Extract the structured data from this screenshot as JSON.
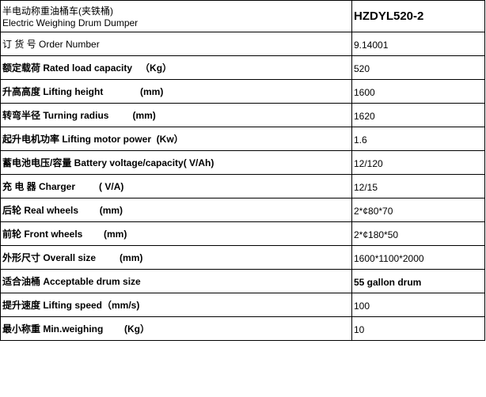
{
  "header": {
    "label_cn": "半电动称重油桶车(夹铁桶)",
    "label_en": "Electric Weighing Drum Dumper",
    "value": "HZDYL520-2"
  },
  "rows": [
    {
      "label": "订 货 号 Order Number",
      "value": "9.14001",
      "label_bold": false,
      "value_bold": false
    },
    {
      "label": "额定载荷 Rated load capacity   （Kg）",
      "value": "520",
      "label_bold": true,
      "value_bold": false
    },
    {
      "label": "升高高度 Lifting height              (mm)",
      "value": "1600",
      "label_bold": true,
      "value_bold": false
    },
    {
      "label": "转弯半径 Turning radius         (mm)",
      "value": "1620",
      "label_bold": true,
      "value_bold": false
    },
    {
      "label": "起升电机功率 Lifting motor power  (Kw）",
      "value": "1.6",
      "label_bold": true,
      "value_bold": false
    },
    {
      "label": "蓄电池电压/容量 Battery voltage/capacity( V/Ah)",
      "value": "12/120",
      "label_bold": true,
      "value_bold": false
    },
    {
      "label": "充 电 器 Charger         ( V/A)",
      "value": "12/15",
      "label_bold": true,
      "value_bold": false
    },
    {
      "label": "后轮 Real wheels        (mm)",
      "value": "2*¢80*70",
      "label_bold": true,
      "value_bold": false
    },
    {
      "label": "前轮 Front wheels        (mm)",
      "value": "2*¢180*50",
      "label_bold": true,
      "value_bold": false
    },
    {
      "label": "外形尺寸 Overall size         (mm)",
      "value": "1600*1100*2000",
      "label_bold": true,
      "value_bold": false
    },
    {
      "label": "适合油桶 Acceptable drum size",
      "value": "55 gallon drum",
      "label_bold": true,
      "value_bold": true
    },
    {
      "label": "提升速度 Lifting speed（mm/s)",
      "value": "100",
      "label_bold": true,
      "value_bold": false
    },
    {
      "label": "最小称重 Min.weighing        (Kg）",
      "value": "10",
      "label_bold": true,
      "value_bold": false
    }
  ],
  "colors": {
    "border": "#000000",
    "background": "#ffffff",
    "text": "#000000"
  }
}
